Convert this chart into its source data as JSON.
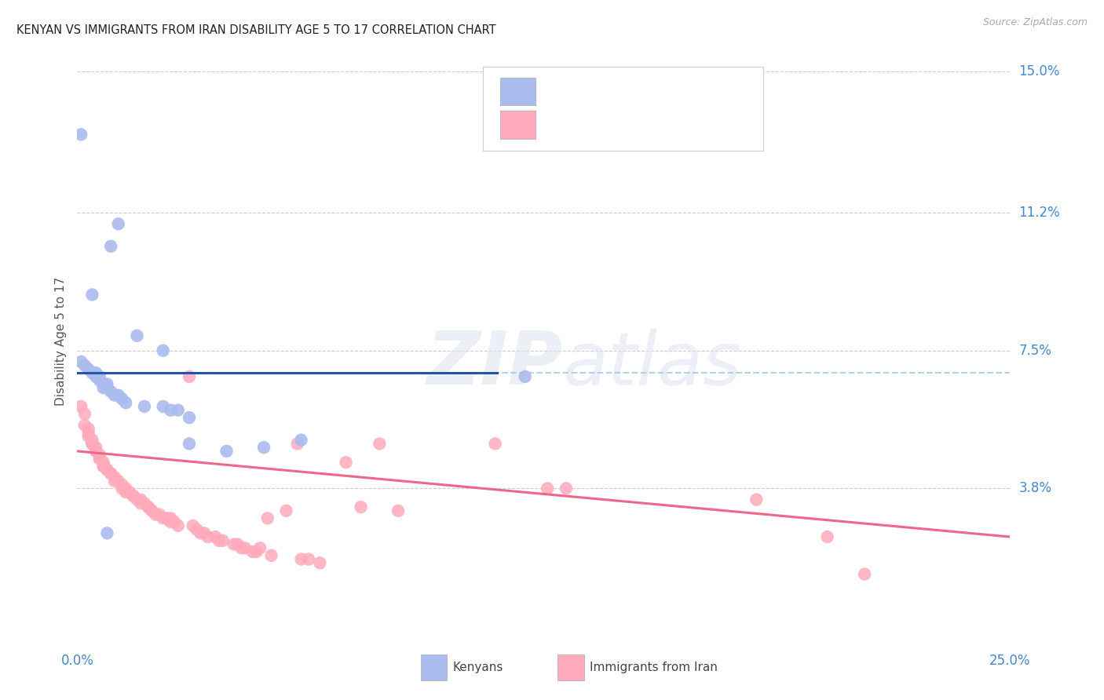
{
  "title": "KENYAN VS IMMIGRANTS FROM IRAN DISABILITY AGE 5 TO 17 CORRELATION CHART",
  "source": "Source: ZipAtlas.com",
  "ylabel": "Disability Age 5 to 17",
  "xmin": 0.0,
  "xmax": 0.25,
  "ymin": 0.0,
  "ymax": 0.155,
  "ytick_vals": [
    0.038,
    0.075,
    0.112,
    0.15
  ],
  "ytick_labels": [
    "3.8%",
    "7.5%",
    "11.2%",
    "15.0%"
  ],
  "dashed_line_y": 0.069,
  "blue_scatter_color": "#aabbee",
  "pink_scatter_color": "#ffaabb",
  "blue_line_color": "#2255aa",
  "pink_line_color": "#ee6688",
  "dashed_line_color": "#aaccee",
  "grid_color": "#cccccc",
  "kenyan_points": [
    [
      0.001,
      0.133
    ],
    [
      0.011,
      0.109
    ],
    [
      0.009,
      0.103
    ],
    [
      0.004,
      0.09
    ],
    [
      0.016,
      0.079
    ],
    [
      0.023,
      0.075
    ],
    [
      0.001,
      0.072
    ],
    [
      0.002,
      0.071
    ],
    [
      0.003,
      0.07
    ],
    [
      0.004,
      0.069
    ],
    [
      0.005,
      0.069
    ],
    [
      0.005,
      0.068
    ],
    [
      0.006,
      0.068
    ],
    [
      0.006,
      0.067
    ],
    [
      0.007,
      0.066
    ],
    [
      0.008,
      0.066
    ],
    [
      0.007,
      0.065
    ],
    [
      0.008,
      0.065
    ],
    [
      0.009,
      0.064
    ],
    [
      0.01,
      0.063
    ],
    [
      0.011,
      0.063
    ],
    [
      0.012,
      0.062
    ],
    [
      0.013,
      0.061
    ],
    [
      0.018,
      0.06
    ],
    [
      0.023,
      0.06
    ],
    [
      0.025,
      0.059
    ],
    [
      0.027,
      0.059
    ],
    [
      0.03,
      0.057
    ],
    [
      0.12,
      0.068
    ],
    [
      0.03,
      0.05
    ],
    [
      0.04,
      0.048
    ],
    [
      0.05,
      0.049
    ],
    [
      0.008,
      0.026
    ],
    [
      0.06,
      0.051
    ]
  ],
  "iran_points": [
    [
      0.001,
      0.06
    ],
    [
      0.002,
      0.058
    ],
    [
      0.002,
      0.055
    ],
    [
      0.003,
      0.054
    ],
    [
      0.003,
      0.053
    ],
    [
      0.003,
      0.052
    ],
    [
      0.004,
      0.051
    ],
    [
      0.004,
      0.05
    ],
    [
      0.004,
      0.05
    ],
    [
      0.005,
      0.049
    ],
    [
      0.005,
      0.048
    ],
    [
      0.005,
      0.048
    ],
    [
      0.006,
      0.047
    ],
    [
      0.006,
      0.046
    ],
    [
      0.006,
      0.046
    ],
    [
      0.007,
      0.045
    ],
    [
      0.007,
      0.044
    ],
    [
      0.007,
      0.044
    ],
    [
      0.008,
      0.043
    ],
    [
      0.008,
      0.043
    ],
    [
      0.009,
      0.042
    ],
    [
      0.009,
      0.042
    ],
    [
      0.01,
      0.041
    ],
    [
      0.01,
      0.04
    ],
    [
      0.011,
      0.04
    ],
    [
      0.012,
      0.039
    ],
    [
      0.012,
      0.038
    ],
    [
      0.013,
      0.038
    ],
    [
      0.013,
      0.037
    ],
    [
      0.014,
      0.037
    ],
    [
      0.015,
      0.036
    ],
    [
      0.015,
      0.036
    ],
    [
      0.016,
      0.035
    ],
    [
      0.017,
      0.035
    ],
    [
      0.017,
      0.034
    ],
    [
      0.018,
      0.034
    ],
    [
      0.019,
      0.033
    ],
    [
      0.019,
      0.033
    ],
    [
      0.02,
      0.032
    ],
    [
      0.02,
      0.032
    ],
    [
      0.021,
      0.031
    ],
    [
      0.022,
      0.031
    ],
    [
      0.023,
      0.03
    ],
    [
      0.024,
      0.03
    ],
    [
      0.025,
      0.03
    ],
    [
      0.025,
      0.029
    ],
    [
      0.026,
      0.029
    ],
    [
      0.027,
      0.028
    ],
    [
      0.03,
      0.068
    ],
    [
      0.031,
      0.028
    ],
    [
      0.032,
      0.027
    ],
    [
      0.033,
      0.026
    ],
    [
      0.034,
      0.026
    ],
    [
      0.035,
      0.025
    ],
    [
      0.037,
      0.025
    ],
    [
      0.038,
      0.024
    ],
    [
      0.039,
      0.024
    ],
    [
      0.042,
      0.023
    ],
    [
      0.043,
      0.023
    ],
    [
      0.044,
      0.022
    ],
    [
      0.045,
      0.022
    ],
    [
      0.047,
      0.021
    ],
    [
      0.048,
      0.021
    ],
    [
      0.049,
      0.022
    ],
    [
      0.051,
      0.03
    ],
    [
      0.052,
      0.02
    ],
    [
      0.056,
      0.032
    ],
    [
      0.059,
      0.05
    ],
    [
      0.06,
      0.019
    ],
    [
      0.062,
      0.019
    ],
    [
      0.065,
      0.018
    ],
    [
      0.072,
      0.045
    ],
    [
      0.076,
      0.033
    ],
    [
      0.081,
      0.05
    ],
    [
      0.086,
      0.032
    ],
    [
      0.112,
      0.05
    ],
    [
      0.126,
      0.038
    ],
    [
      0.131,
      0.038
    ],
    [
      0.182,
      0.035
    ],
    [
      0.201,
      0.025
    ],
    [
      0.211,
      0.015
    ]
  ]
}
